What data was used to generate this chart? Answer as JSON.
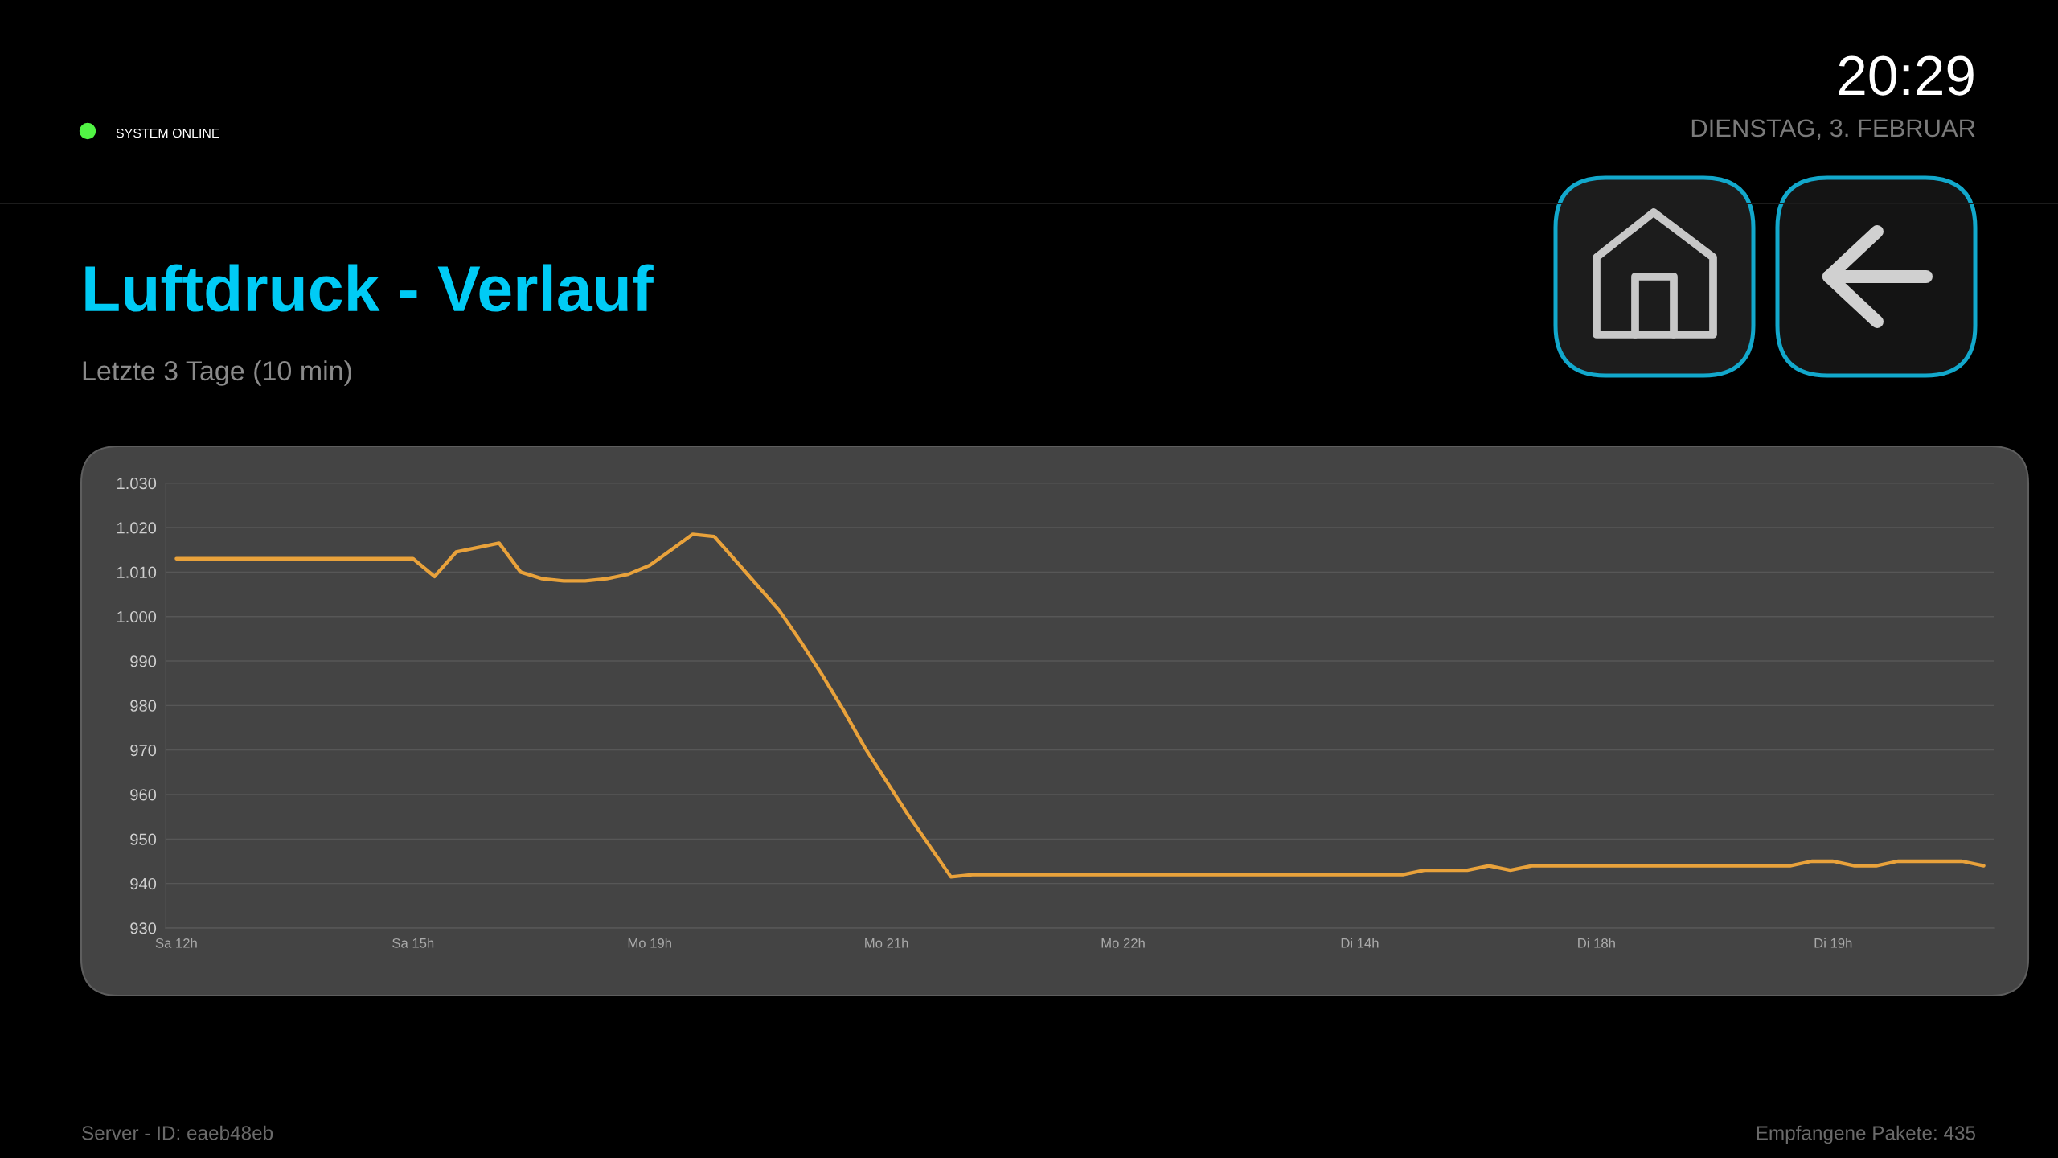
{
  "chart_data": {
    "type": "line",
    "title": "Luftdruck - Verlauf",
    "subtitle": "Letzte 3 Tage (10 min)",
    "annotations": [
      "SYSTEM ONLINE",
      "20:29",
      "DIENSTAG, 3. FEBRUAR",
      "Server - ID: eaeb48eb",
      "Empfangene Pakete: 435"
    ],
    "categories": [
      "Sa 12h",
      null,
      null,
      null,
      null,
      null,
      null,
      null,
      null,
      null,
      null,
      "Sa 15h",
      null,
      null,
      null,
      null,
      null,
      null,
      null,
      null,
      null,
      null,
      "Mo 19h",
      null,
      null,
      null,
      null,
      null,
      null,
      null,
      null,
      null,
      null,
      "Mo 21h",
      null,
      null,
      null,
      null,
      null,
      null,
      null,
      null,
      null,
      null,
      "Mo 22h",
      null,
      null,
      null,
      null,
      null,
      null,
      null,
      null,
      null,
      null,
      "Di 14h",
      null,
      null,
      null,
      null,
      null,
      null,
      null,
      null,
      null,
      null,
      "Di 18h",
      null,
      null,
      null,
      null,
      null,
      null,
      null,
      null,
      null,
      null,
      "Di 19h",
      null,
      null,
      null,
      null,
      null,
      null,
      null
    ],
    "series": [
      {
        "color": "#e9a23b",
        "values": [
          1013,
          1013,
          1013,
          1013,
          1013,
          1013,
          1013,
          1013,
          1013,
          1013,
          1013,
          1013,
          1009,
          1014.5,
          1015.5,
          1016.5,
          1010,
          1008.5,
          1008,
          1008,
          1008.5,
          1009.5,
          1011.5,
          1015,
          1018.5,
          1018,
          1012.5,
          1007,
          1001.5,
          994.5,
          987,
          979,
          970.5,
          963,
          955.5,
          948.5,
          941.5,
          942,
          942,
          942,
          942,
          942,
          942,
          942,
          942,
          942,
          942,
          942,
          942,
          942,
          942,
          942,
          942,
          942,
          942,
          942,
          942,
          942,
          943,
          943,
          943,
          944,
          943,
          944,
          944,
          944,
          944,
          944,
          944,
          944,
          944,
          944,
          944,
          944,
          944,
          944,
          945,
          945,
          944,
          944,
          945,
          945,
          945,
          945,
          944
        ]
      }
    ],
    "ylim": [
      930,
      1030
    ],
    "yticks": [
      930,
      940,
      950,
      960,
      970,
      980,
      990,
      {
        "value": 1000,
        "label": "1.000"
      },
      {
        "value": 1010,
        "label": "1.010"
      },
      {
        "value": 1020,
        "label": "1.020"
      },
      {
        "value": 1030,
        "label": "1.030"
      }
    ],
    "grid": "y",
    "marker": "none",
    "line_style": "solid"
  }
}
